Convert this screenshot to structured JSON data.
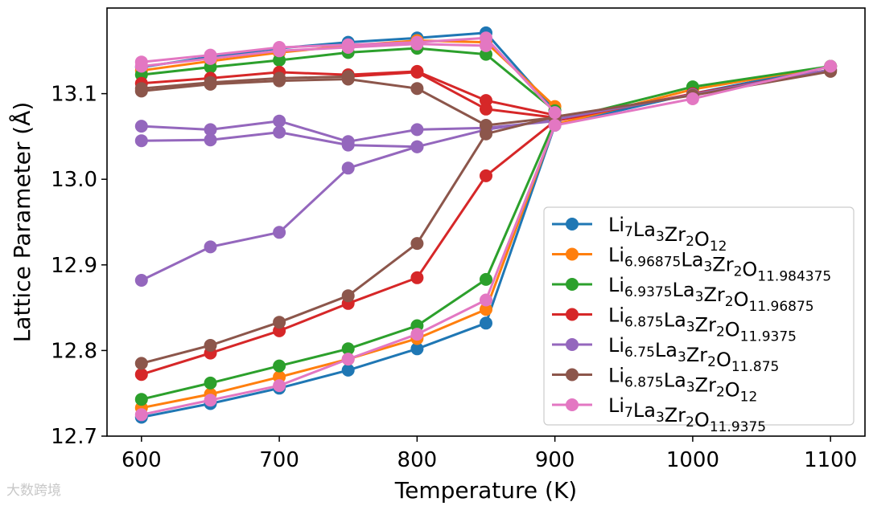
{
  "chart_data": {
    "type": "line",
    "title": "",
    "xlabel": "Temperature (K)",
    "ylabel": "Lattice Parameter (Å)",
    "xlim": [
      575,
      1125
    ],
    "ylim": [
      12.7,
      13.2
    ],
    "xticks": [
      600,
      700,
      800,
      900,
      1000,
      1100
    ],
    "yticks": [
      12.7,
      12.8,
      12.9,
      13.0,
      13.1
    ],
    "legend_position": "lower-right",
    "grid": false,
    "series": [
      {
        "name": "Li7La3Zr2O12",
        "label": {
          "parts": [
            [
              "Li",
              ""
            ],
            [
              "7",
              "sub"
            ],
            [
              "La",
              ""
            ],
            [
              "3",
              "sub"
            ],
            [
              "Zr",
              ""
            ],
            [
              "2",
              "sub"
            ],
            [
              "O",
              ""
            ],
            [
              "12",
              "sub"
            ]
          ]
        },
        "color": "#1f77b4",
        "heating": {
          "x": [
            600,
            650,
            700,
            750,
            800,
            850,
            900,
            1000,
            1100
          ],
          "y": [
            12.722,
            12.738,
            12.756,
            12.777,
            12.802,
            12.832,
            13.063,
            13.1,
            13.132
          ]
        },
        "cooling": {
          "x": [
            600,
            650,
            700,
            750,
            800,
            850,
            900
          ],
          "y": [
            13.131,
            13.143,
            13.153,
            13.16,
            13.165,
            13.171,
            13.08
          ]
        }
      },
      {
        "name": "Li6.96875La3Zr2O11.984375",
        "label": {
          "parts": [
            [
              "Li",
              ""
            ],
            [
              "6.96875",
              "sub"
            ],
            [
              "La",
              ""
            ],
            [
              "3",
              "sub"
            ],
            [
              "Zr",
              ""
            ],
            [
              "2",
              "sub"
            ],
            [
              "O",
              ""
            ],
            [
              "11.984375",
              "sub"
            ]
          ]
        },
        "color": "#ff7f0e",
        "heating": {
          "x": [
            600,
            650,
            700,
            750,
            800,
            850,
            900,
            1000,
            1100
          ],
          "y": [
            12.733,
            12.749,
            12.769,
            12.79,
            12.814,
            12.848,
            13.064,
            13.105,
            13.132
          ]
        },
        "cooling": {
          "x": [
            600,
            650,
            700,
            750,
            800,
            850,
            900
          ],
          "y": [
            13.127,
            13.138,
            13.148,
            13.156,
            13.162,
            13.16,
            13.085
          ]
        }
      },
      {
        "name": "Li6.9375La3Zr2O11.96875",
        "label": {
          "parts": [
            [
              "Li",
              ""
            ],
            [
              "6.9375",
              "sub"
            ],
            [
              "La",
              ""
            ],
            [
              "3",
              "sub"
            ],
            [
              "Zr",
              ""
            ],
            [
              "2",
              "sub"
            ],
            [
              "O",
              ""
            ],
            [
              "11.96875",
              "sub"
            ]
          ]
        },
        "color": "#2ca02c",
        "heating": {
          "x": [
            600,
            650,
            700,
            750,
            800,
            850,
            900,
            1000,
            1100
          ],
          "y": [
            12.743,
            12.762,
            12.782,
            12.802,
            12.829,
            12.883,
            13.068,
            13.108,
            13.132
          ]
        },
        "cooling": {
          "x": [
            600,
            650,
            700,
            750,
            800,
            850,
            900
          ],
          "y": [
            13.122,
            13.131,
            13.139,
            13.148,
            13.153,
            13.146,
            13.08
          ]
        }
      },
      {
        "name": "Li6.875La3Zr2O11.9375",
        "label": {
          "parts": [
            [
              "Li",
              ""
            ],
            [
              "6.875",
              "sub"
            ],
            [
              "La",
              ""
            ],
            [
              "3",
              "sub"
            ],
            [
              "Zr",
              ""
            ],
            [
              "2",
              "sub"
            ],
            [
              "O",
              ""
            ],
            [
              "11.9375",
              "sub"
            ]
          ]
        },
        "color": "#d62728",
        "heating": {
          "x": [
            600,
            650,
            700,
            750,
            800,
            850,
            900,
            1000,
            1100
          ],
          "y": [
            12.772,
            12.797,
            12.823,
            12.855,
            12.885,
            13.004,
            13.068,
            13.1,
            13.128
          ]
        },
        "cooling": {
          "x": [
            600,
            650,
            700,
            750,
            800,
            850,
            900
          ],
          "y": [
            13.112,
            13.118,
            13.125,
            13.122,
            13.126,
            13.092,
            13.075
          ]
        },
        "cooling2": {
          "x": [
            750,
            800,
            850,
            900
          ],
          "y": [
            13.12,
            13.125,
            13.082,
            13.072
          ]
        }
      },
      {
        "name": "Li6.75La3Zr2O11.875",
        "label": {
          "parts": [
            [
              "Li",
              ""
            ],
            [
              "6.75",
              "sub"
            ],
            [
              "La",
              ""
            ],
            [
              "3",
              "sub"
            ],
            [
              "Zr",
              ""
            ],
            [
              "2",
              "sub"
            ],
            [
              "O",
              ""
            ],
            [
              "11.875",
              "sub"
            ]
          ]
        },
        "color": "#9467bd",
        "heating": {
          "x": [
            600,
            650,
            700,
            750,
            800,
            850,
            900,
            1000,
            1100
          ],
          "y": [
            12.882,
            12.921,
            12.938,
            13.013,
            13.038,
            13.058,
            13.07,
            13.099,
            13.128
          ]
        },
        "cooling": {
          "x": [
            600,
            650,
            700,
            750,
            800,
            850,
            900
          ],
          "y": [
            13.062,
            13.058,
            13.068,
            13.044,
            13.058,
            13.06,
            13.068
          ]
        },
        "cooling2": {
          "x": [
            600,
            650,
            700,
            750,
            800
          ],
          "y": [
            13.045,
            13.046,
            13.055,
            13.04,
            13.038
          ]
        }
      },
      {
        "name": "Li6.875La3Zr2O12",
        "label": {
          "parts": [
            [
              "Li",
              ""
            ],
            [
              "6.875",
              "sub"
            ],
            [
              "La",
              ""
            ],
            [
              "3",
              "sub"
            ],
            [
              "Zr",
              ""
            ],
            [
              "2",
              "sub"
            ],
            [
              "O",
              ""
            ],
            [
              "12",
              "sub"
            ]
          ]
        },
        "color": "#8c564b",
        "heating": {
          "x": [
            600,
            650,
            700,
            750,
            800,
            850,
            900,
            1000,
            1100
          ],
          "y": [
            12.785,
            12.806,
            12.833,
            12.864,
            12.925,
            13.053,
            13.073,
            13.098,
            13.126
          ]
        },
        "cooling": {
          "x": [
            600,
            650,
            700,
            750,
            800,
            850,
            900
          ],
          "y": [
            13.103,
            13.111,
            13.115,
            13.117,
            13.106,
            13.063,
            13.072
          ]
        },
        "cooling2": {
          "x": [
            600,
            650,
            700,
            750
          ],
          "y": [
            13.106,
            13.113,
            13.118,
            13.12
          ]
        }
      },
      {
        "name": "Li7La3Zr2O11.9375",
        "label": {
          "parts": [
            [
              "Li",
              ""
            ],
            [
              "7",
              "sub"
            ],
            [
              "La",
              ""
            ],
            [
              "3",
              "sub"
            ],
            [
              "Zr",
              ""
            ],
            [
              "2",
              "sub"
            ],
            [
              "O",
              ""
            ],
            [
              "11.9375",
              "sub"
            ]
          ]
        },
        "color": "#e377c2",
        "heating": {
          "x": [
            600,
            650,
            700,
            750,
            800,
            850,
            900,
            1000,
            1100
          ],
          "y": [
            12.725,
            12.742,
            12.759,
            12.79,
            12.819,
            12.859,
            13.063,
            13.094,
            13.132
          ]
        },
        "cooling": {
          "x": [
            600,
            650,
            700,
            750,
            800,
            850,
            900
          ],
          "y": [
            13.137,
            13.145,
            13.154,
            13.157,
            13.16,
            13.165,
            13.078
          ]
        },
        "cooling2": {
          "x": [
            600,
            650,
            700,
            750,
            800,
            850
          ],
          "y": [
            13.132,
            13.141,
            13.15,
            13.154,
            13.158,
            13.156
          ]
        }
      }
    ]
  },
  "watermark": {
    "text": "大数跨境"
  }
}
